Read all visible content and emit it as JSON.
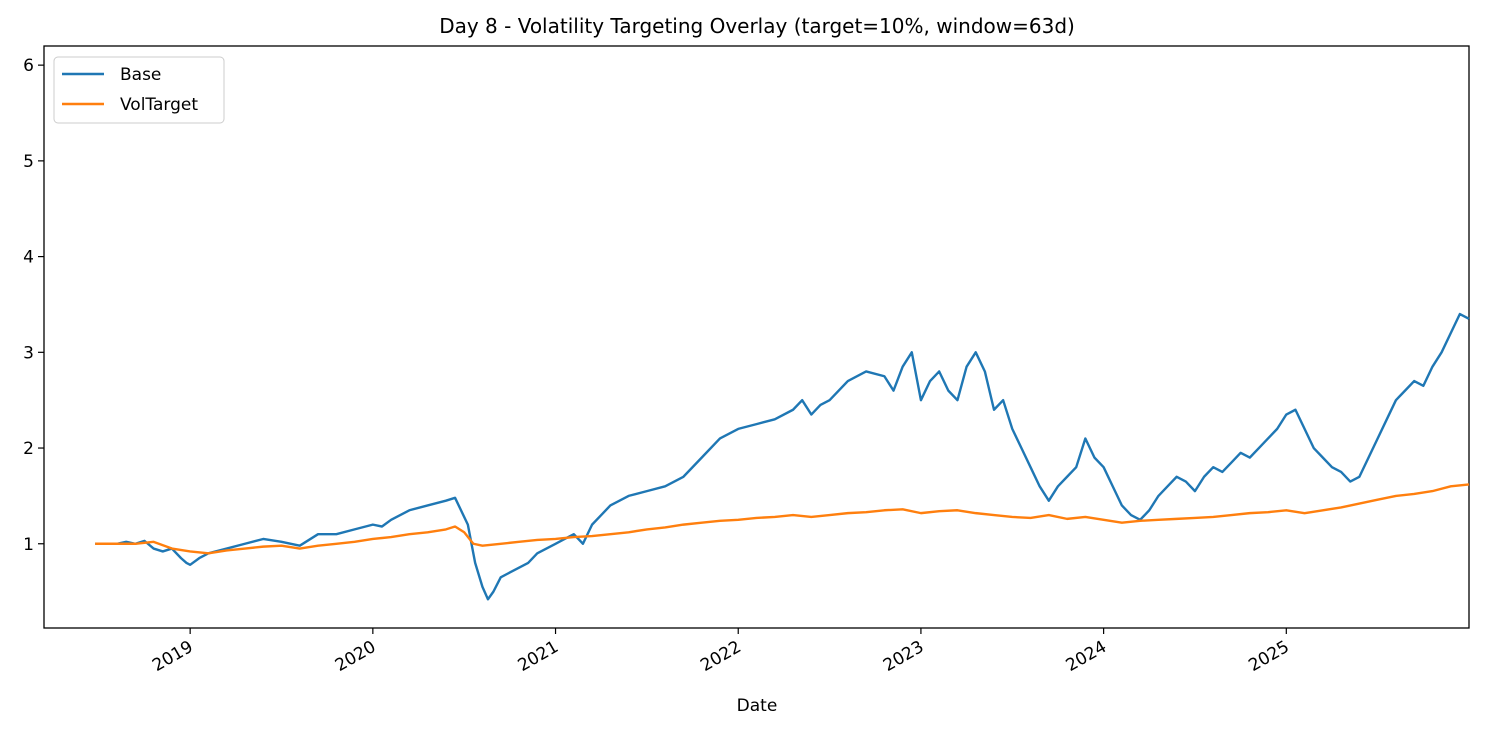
{
  "chart_data": {
    "type": "line",
    "title": "Day 8 - Volatility Targeting Overlay (target=10%, window=63d)",
    "xlabel": "Date",
    "ylabel": "",
    "xlim": [
      2018.2,
      2026.0
    ],
    "ylim": [
      0.12,
      6.2
    ],
    "yticks": [
      1,
      2,
      3,
      4,
      5,
      6
    ],
    "xticks": [
      {
        "label": "2019",
        "value": 2019
      },
      {
        "label": "2020",
        "value": 2020
      },
      {
        "label": "2021",
        "value": 2021
      },
      {
        "label": "2022",
        "value": 2022
      },
      {
        "label": "2023",
        "value": 2023
      },
      {
        "label": "2024",
        "value": 2024
      },
      {
        "label": "2025",
        "value": 2025
      }
    ],
    "legend_position": "top-left",
    "series": [
      {
        "name": "Base",
        "color": "#1f77b4",
        "points": [
          [
            2018.48,
            1.0
          ],
          [
            2018.55,
            1.0
          ],
          [
            2018.6,
            1.0
          ],
          [
            2018.65,
            1.02
          ],
          [
            2018.7,
            1.0
          ],
          [
            2018.75,
            1.03
          ],
          [
            2018.8,
            0.95
          ],
          [
            2018.85,
            0.92
          ],
          [
            2018.9,
            0.95
          ],
          [
            2018.95,
            0.85
          ],
          [
            2018.98,
            0.8
          ],
          [
            2019.0,
            0.78
          ],
          [
            2019.05,
            0.85
          ],
          [
            2019.1,
            0.9
          ],
          [
            2019.2,
            0.95
          ],
          [
            2019.3,
            1.0
          ],
          [
            2019.4,
            1.05
          ],
          [
            2019.5,
            1.02
          ],
          [
            2019.6,
            0.98
          ],
          [
            2019.7,
            1.1
          ],
          [
            2019.8,
            1.1
          ],
          [
            2019.9,
            1.15
          ],
          [
            2020.0,
            1.2
          ],
          [
            2020.05,
            1.18
          ],
          [
            2020.1,
            1.25
          ],
          [
            2020.2,
            1.35
          ],
          [
            2020.3,
            1.4
          ],
          [
            2020.4,
            1.45
          ],
          [
            2020.45,
            1.48
          ],
          [
            2020.52,
            1.2
          ],
          [
            2020.56,
            0.8
          ],
          [
            2020.6,
            0.55
          ],
          [
            2020.63,
            0.42
          ],
          [
            2020.66,
            0.5
          ],
          [
            2020.7,
            0.65
          ],
          [
            2020.75,
            0.7
          ],
          [
            2020.8,
            0.75
          ],
          [
            2020.85,
            0.8
          ],
          [
            2020.9,
            0.9
          ],
          [
            2020.95,
            0.95
          ],
          [
            2021.0,
            1.0
          ],
          [
            2021.05,
            1.05
          ],
          [
            2021.1,
            1.1
          ],
          [
            2021.15,
            1.0
          ],
          [
            2021.2,
            1.2
          ],
          [
            2021.25,
            1.3
          ],
          [
            2021.3,
            1.4
          ],
          [
            2021.35,
            1.45
          ],
          [
            2021.4,
            1.5
          ],
          [
            2021.5,
            1.55
          ],
          [
            2021.6,
            1.6
          ],
          [
            2021.7,
            1.7
          ],
          [
            2021.8,
            1.9
          ],
          [
            2021.9,
            2.1
          ],
          [
            2022.0,
            2.2
          ],
          [
            2022.1,
            2.25
          ],
          [
            2022.2,
            2.3
          ],
          [
            2022.3,
            2.4
          ],
          [
            2022.35,
            2.5
          ],
          [
            2022.4,
            2.35
          ],
          [
            2022.45,
            2.45
          ],
          [
            2022.5,
            2.5
          ],
          [
            2022.6,
            2.7
          ],
          [
            2022.7,
            2.8
          ],
          [
            2022.8,
            2.75
          ],
          [
            2022.85,
            2.6
          ],
          [
            2022.9,
            2.85
          ],
          [
            2022.95,
            3.0
          ],
          [
            2023.0,
            2.5
          ],
          [
            2023.05,
            2.7
          ],
          [
            2023.1,
            2.8
          ],
          [
            2023.15,
            2.6
          ],
          [
            2023.2,
            2.5
          ],
          [
            2023.25,
            2.85
          ],
          [
            2023.3,
            3.0
          ],
          [
            2023.35,
            2.8
          ],
          [
            2023.4,
            2.4
          ],
          [
            2023.45,
            2.5
          ],
          [
            2023.5,
            2.2
          ],
          [
            2023.55,
            2.0
          ],
          [
            2023.6,
            1.8
          ],
          [
            2023.65,
            1.6
          ],
          [
            2023.7,
            1.45
          ],
          [
            2023.75,
            1.6
          ],
          [
            2023.8,
            1.7
          ],
          [
            2023.85,
            1.8
          ],
          [
            2023.9,
            2.1
          ],
          [
            2023.95,
            1.9
          ],
          [
            2024.0,
            1.8
          ],
          [
            2024.05,
            1.6
          ],
          [
            2024.1,
            1.4
          ],
          [
            2024.15,
            1.3
          ],
          [
            2024.2,
            1.25
          ],
          [
            2024.25,
            1.35
          ],
          [
            2024.3,
            1.5
          ],
          [
            2024.35,
            1.6
          ],
          [
            2024.4,
            1.7
          ],
          [
            2024.45,
            1.65
          ],
          [
            2024.5,
            1.55
          ],
          [
            2024.55,
            1.7
          ],
          [
            2024.6,
            1.8
          ],
          [
            2024.65,
            1.75
          ],
          [
            2024.7,
            1.85
          ],
          [
            2024.75,
            1.95
          ],
          [
            2024.8,
            1.9
          ],
          [
            2024.85,
            2.0
          ],
          [
            2024.9,
            2.1
          ],
          [
            2024.95,
            2.2
          ],
          [
            2025.0,
            2.35
          ],
          [
            2025.05,
            2.4
          ],
          [
            2025.1,
            2.2
          ],
          [
            2025.15,
            2.0
          ],
          [
            2025.2,
            1.9
          ],
          [
            2025.25,
            1.8
          ],
          [
            2025.3,
            1.75
          ],
          [
            2025.35,
            1.65
          ],
          [
            2025.4,
            1.7
          ],
          [
            2025.45,
            1.9
          ],
          [
            2025.5,
            2.1
          ],
          [
            2025.55,
            2.3
          ],
          [
            2025.6,
            2.5
          ],
          [
            2025.65,
            2.6
          ],
          [
            2025.7,
            2.7
          ],
          [
            2025.75,
            2.65
          ],
          [
            2025.8,
            2.85
          ],
          [
            2025.85,
            3.0
          ],
          [
            2025.9,
            3.2
          ],
          [
            2025.95,
            3.4
          ],
          [
            2026.0,
            3.35
          ]
        ]
      },
      {
        "name": "VolTarget",
        "color": "#ff7f0e",
        "points": [
          [
            2018.48,
            1.0
          ],
          [
            2018.6,
            1.0
          ],
          [
            2018.7,
            1.0
          ],
          [
            2018.8,
            1.02
          ],
          [
            2018.9,
            0.95
          ],
          [
            2019.0,
            0.92
          ],
          [
            2019.1,
            0.9
          ],
          [
            2019.2,
            0.93
          ],
          [
            2019.3,
            0.95
          ],
          [
            2019.4,
            0.97
          ],
          [
            2019.5,
            0.98
          ],
          [
            2019.6,
            0.95
          ],
          [
            2019.7,
            0.98
          ],
          [
            2019.8,
            1.0
          ],
          [
            2019.9,
            1.02
          ],
          [
            2020.0,
            1.05
          ],
          [
            2020.1,
            1.07
          ],
          [
            2020.2,
            1.1
          ],
          [
            2020.3,
            1.12
          ],
          [
            2020.4,
            1.15
          ],
          [
            2020.45,
            1.18
          ],
          [
            2020.5,
            1.12
          ],
          [
            2020.55,
            1.0
          ],
          [
            2020.6,
            0.98
          ],
          [
            2020.7,
            1.0
          ],
          [
            2020.8,
            1.02
          ],
          [
            2020.9,
            1.04
          ],
          [
            2021.0,
            1.05
          ],
          [
            2021.1,
            1.07
          ],
          [
            2021.2,
            1.08
          ],
          [
            2021.3,
            1.1
          ],
          [
            2021.4,
            1.12
          ],
          [
            2021.5,
            1.15
          ],
          [
            2021.6,
            1.17
          ],
          [
            2021.7,
            1.2
          ],
          [
            2021.8,
            1.22
          ],
          [
            2021.9,
            1.24
          ],
          [
            2022.0,
            1.25
          ],
          [
            2022.1,
            1.27
          ],
          [
            2022.2,
            1.28
          ],
          [
            2022.3,
            1.3
          ],
          [
            2022.4,
            1.28
          ],
          [
            2022.5,
            1.3
          ],
          [
            2022.6,
            1.32
          ],
          [
            2022.7,
            1.33
          ],
          [
            2022.8,
            1.35
          ],
          [
            2022.9,
            1.36
          ],
          [
            2023.0,
            1.32
          ],
          [
            2023.1,
            1.34
          ],
          [
            2023.2,
            1.35
          ],
          [
            2023.3,
            1.32
          ],
          [
            2023.4,
            1.3
          ],
          [
            2023.5,
            1.28
          ],
          [
            2023.6,
            1.27
          ],
          [
            2023.7,
            1.3
          ],
          [
            2023.8,
            1.26
          ],
          [
            2023.9,
            1.28
          ],
          [
            2024.0,
            1.25
          ],
          [
            2024.1,
            1.22
          ],
          [
            2024.2,
            1.24
          ],
          [
            2024.3,
            1.25
          ],
          [
            2024.4,
            1.26
          ],
          [
            2024.5,
            1.27
          ],
          [
            2024.6,
            1.28
          ],
          [
            2024.7,
            1.3
          ],
          [
            2024.8,
            1.32
          ],
          [
            2024.9,
            1.33
          ],
          [
            2025.0,
            1.35
          ],
          [
            2025.1,
            1.32
          ],
          [
            2025.2,
            1.35
          ],
          [
            2025.3,
            1.38
          ],
          [
            2025.4,
            1.42
          ],
          [
            2025.5,
            1.46
          ],
          [
            2025.6,
            1.5
          ],
          [
            2025.7,
            1.52
          ],
          [
            2025.8,
            1.55
          ],
          [
            2025.9,
            1.6
          ],
          [
            2026.0,
            1.62
          ]
        ]
      }
    ]
  }
}
